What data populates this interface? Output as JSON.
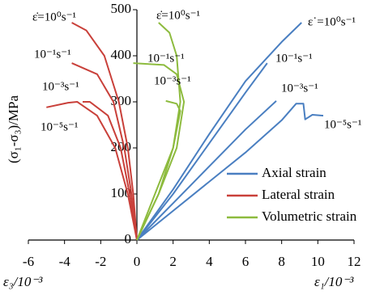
{
  "chart_data": {
    "type": "line",
    "ylabel": "(σ₁-σ₃)/MPa",
    "xlabel_left": "ε₃/10⁻³",
    "xlabel_right": "ε₁/10⁻³",
    "xlim": [
      -6,
      12
    ],
    "xticks": [
      -6,
      -4,
      -2,
      0,
      2,
      4,
      6,
      8,
      10,
      12
    ],
    "ylim": [
      0,
      500
    ],
    "yticks": [
      0,
      100,
      200,
      300,
      400,
      500
    ],
    "legend": "lower-right",
    "series": [
      {
        "name": "Axial strain",
        "color": "#4a7fc1",
        "curves": [
          {
            "x": [
              0,
              2,
              4,
              6,
              8,
              9.1
            ],
            "y": [
              0,
              110,
              230,
              345,
              430,
              472
            ]
          },
          {
            "x": [
              0,
              2,
              4,
              6,
              7.2
            ],
            "y": [
              0,
              100,
              210,
              320,
              384
            ]
          },
          {
            "x": [
              0,
              2,
              4,
              6,
              7.7
            ],
            "y": [
              0,
              80,
              160,
              240,
              302
            ]
          },
          {
            "x": [
              0,
              3,
              6,
              8,
              8.8,
              9.2,
              9.3,
              9.7,
              10.3
            ],
            "y": [
              0,
              95,
              190,
              260,
              296,
              296,
              262,
              272,
              270
            ]
          }
        ]
      },
      {
        "name": "Lateral strain",
        "color": "#c9403a",
        "curves": [
          {
            "x": [
              0,
              -0.2,
              -0.5,
              -1,
              -1.8,
              -2.8,
              -3.6
            ],
            "y": [
              0,
              100,
              200,
              300,
              400,
              455,
              472
            ]
          },
          {
            "x": [
              0,
              -0.3,
              -0.7,
              -1.3,
              -2.2,
              -3.6
            ],
            "y": [
              0,
              100,
              200,
              300,
              360,
              384
            ]
          },
          {
            "x": [
              0,
              -0.4,
              -0.9,
              -1.6,
              -2.6,
              -3
            ],
            "y": [
              0,
              100,
              200,
              270,
              300,
              300
            ]
          },
          {
            "x": [
              0,
              -0.5,
              -1.2,
              -2.2,
              -3.3,
              -3.8,
              -5
            ],
            "y": [
              0,
              100,
              200,
              270,
              300,
              298,
              288
            ]
          }
        ]
      },
      {
        "name": "Volumetric strain",
        "color": "#8dbb3e",
        "curves": [
          {
            "x": [
              0,
              1,
              2,
              2.4,
              2.2,
              1.8,
              1.2
            ],
            "y": [
              0,
              100,
              200,
              300,
              400,
              450,
              472
            ]
          },
          {
            "x": [
              0,
              1.2,
              2.2,
              2.6,
              2.2,
              1.5,
              -0.2
            ],
            "y": [
              0,
              100,
              200,
              300,
              360,
              380,
              384
            ]
          },
          {
            "x": [
              0,
              1.2,
              2,
              2.4,
              2.2,
              1.6
            ],
            "y": [
              0,
              100,
              200,
              280,
              296,
              302
            ]
          }
        ]
      }
    ],
    "annotations": [
      {
        "text": "ε̇=10⁰s⁻¹"
      },
      {
        "text": "10⁻¹s⁻¹"
      },
      {
        "text": "10⁻³s⁻¹"
      },
      {
        "text": "10⁻⁵s⁻¹"
      },
      {
        "text": "ε̇=10⁰s⁻¹"
      },
      {
        "text": "10⁻¹s⁻¹"
      },
      {
        "text": "10⁻³s⁻¹"
      },
      {
        "text": "ε˙=10⁰s⁻¹"
      },
      {
        "text": "10⁻¹s⁻¹"
      },
      {
        "text": "10⁻³s⁻¹"
      },
      {
        "text": "10⁻⁵s⁻¹"
      }
    ]
  }
}
